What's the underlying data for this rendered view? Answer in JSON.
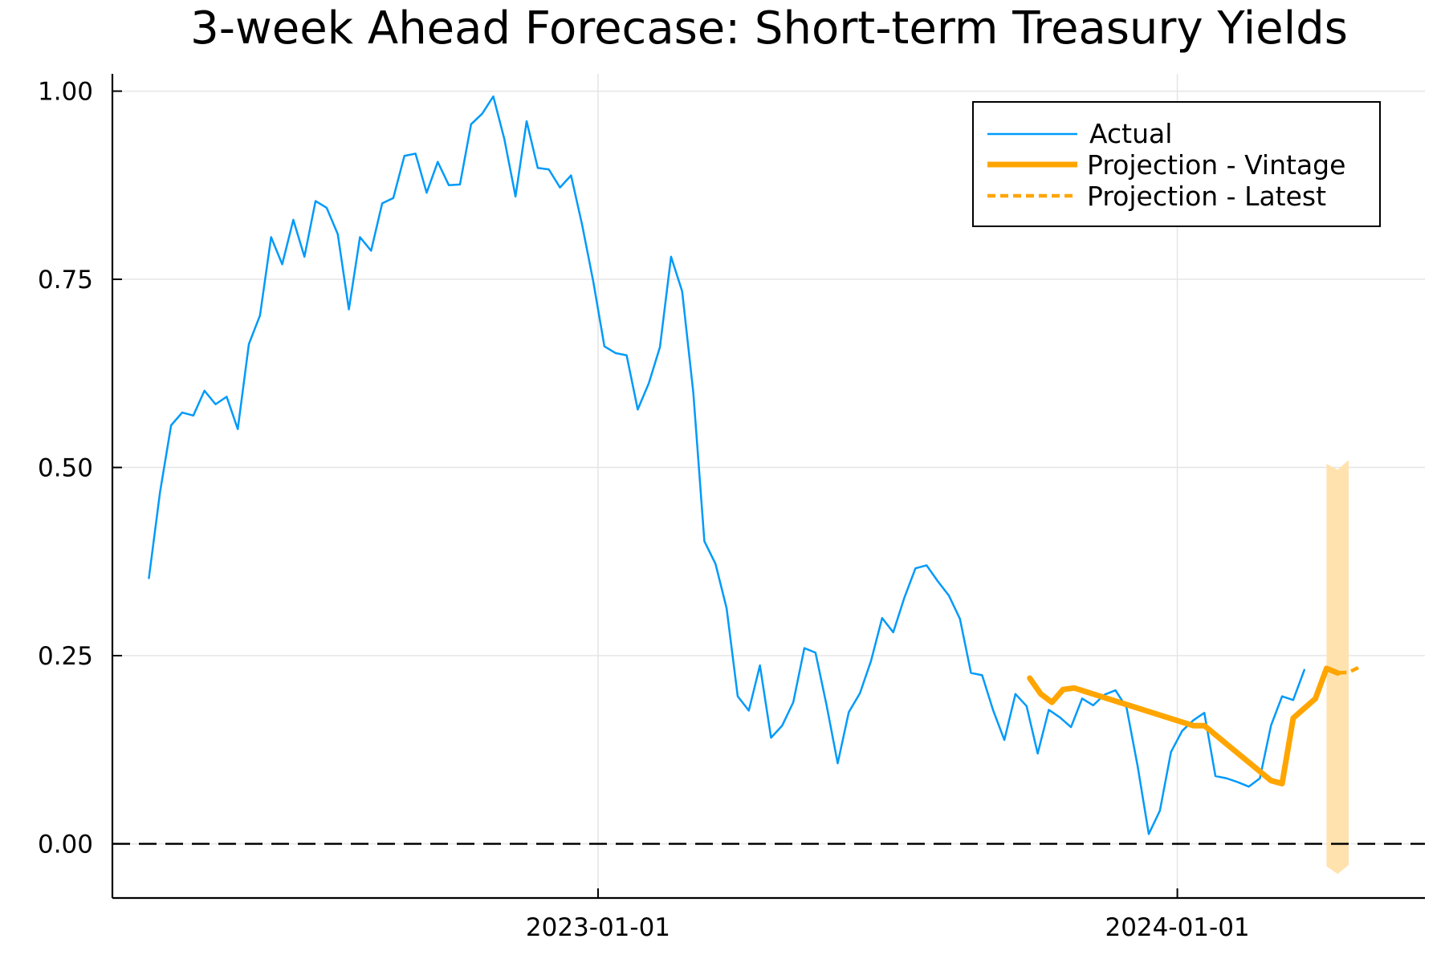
{
  "chart_data": {
    "type": "line",
    "title": "3-week Ahead Forecase: Short-term Treasury Yields",
    "xlabel": "",
    "ylabel": "",
    "x_axis": {
      "kind": "date",
      "range": [
        "2022-03-01",
        "2024-06-05"
      ],
      "ticks": [
        "2023-01-01",
        "2024-01-01"
      ],
      "tick_labels": [
        "2023-01-01",
        "2024-01-01"
      ]
    },
    "y_axis": {
      "range": [
        -0.072,
        1.023
      ],
      "ticks": [
        0,
        0.25,
        0.5,
        0.75,
        1.0
      ],
      "tick_labels": [
        "0.00",
        "0.25",
        "0.50",
        "0.75",
        "1.00"
      ]
    },
    "grid": true,
    "legend_position": "top-right",
    "reference_line": {
      "y": 0,
      "style": "dashed",
      "color": "#000000"
    },
    "colors": {
      "actual": "#009AFA",
      "projection": "#FFA500",
      "band": "#FFE2AE"
    },
    "series": [
      {
        "name": "Actual",
        "style": "solid",
        "points": [
          [
            "2022-03-24",
            0.353
          ],
          [
            "2022-03-31",
            0.467
          ],
          [
            "2022-04-07",
            0.556
          ],
          [
            "2022-04-14",
            0.573
          ],
          [
            "2022-04-21",
            0.569
          ],
          [
            "2022-04-28",
            0.602
          ],
          [
            "2022-05-05",
            0.584
          ],
          [
            "2022-05-12",
            0.594
          ],
          [
            "2022-05-19",
            0.551
          ],
          [
            "2022-05-26",
            0.664
          ],
          [
            "2022-06-02",
            0.702
          ],
          [
            "2022-06-09",
            0.806
          ],
          [
            "2022-06-16",
            0.77
          ],
          [
            "2022-06-23",
            0.829
          ],
          [
            "2022-06-30",
            0.78
          ],
          [
            "2022-07-07",
            0.854
          ],
          [
            "2022-07-14",
            0.845
          ],
          [
            "2022-07-21",
            0.81
          ],
          [
            "2022-07-28",
            0.71
          ],
          [
            "2022-08-04",
            0.806
          ],
          [
            "2022-08-11",
            0.788
          ],
          [
            "2022-08-18",
            0.851
          ],
          [
            "2022-08-25",
            0.858
          ],
          [
            "2022-09-01",
            0.914
          ],
          [
            "2022-09-08",
            0.917
          ],
          [
            "2022-09-15",
            0.865
          ],
          [
            "2022-09-22",
            0.906
          ],
          [
            "2022-09-29",
            0.875
          ],
          [
            "2022-10-06",
            0.876
          ],
          [
            "2022-10-13",
            0.956
          ],
          [
            "2022-10-20",
            0.97
          ],
          [
            "2022-10-27",
            0.993
          ],
          [
            "2022-11-03",
            0.936
          ],
          [
            "2022-11-10",
            0.86
          ],
          [
            "2022-11-17",
            0.96
          ],
          [
            "2022-11-24",
            0.898
          ],
          [
            "2022-12-01",
            0.896
          ],
          [
            "2022-12-08",
            0.872
          ],
          [
            "2022-12-15",
            0.888
          ],
          [
            "2022-12-22",
            0.822
          ],
          [
            "2022-12-29",
            0.747
          ],
          [
            "2023-01-05",
            0.661
          ],
          [
            "2023-01-12",
            0.652
          ],
          [
            "2023-01-19",
            0.649
          ],
          [
            "2023-01-26",
            0.577
          ],
          [
            "2023-02-02",
            0.612
          ],
          [
            "2023-02-09",
            0.66
          ],
          [
            "2023-02-16",
            0.78
          ],
          [
            "2023-02-23",
            0.734
          ],
          [
            "2023-03-02",
            0.6
          ],
          [
            "2023-03-09",
            0.402
          ],
          [
            "2023-03-16",
            0.372
          ],
          [
            "2023-03-23",
            0.313
          ],
          [
            "2023-03-30",
            0.196
          ],
          [
            "2023-04-06",
            0.177
          ],
          [
            "2023-04-13",
            0.237
          ],
          [
            "2023-04-20",
            0.141
          ],
          [
            "2023-04-27",
            0.157
          ],
          [
            "2023-05-04",
            0.188
          ],
          [
            "2023-05-11",
            0.26
          ],
          [
            "2023-05-18",
            0.254
          ],
          [
            "2023-05-25",
            0.184
          ],
          [
            "2023-06-01",
            0.107
          ],
          [
            "2023-06-08",
            0.175
          ],
          [
            "2023-06-15",
            0.2
          ],
          [
            "2023-06-22",
            0.243
          ],
          [
            "2023-06-29",
            0.3
          ],
          [
            "2023-07-06",
            0.281
          ],
          [
            "2023-07-13",
            0.327
          ],
          [
            "2023-07-20",
            0.366
          ],
          [
            "2023-07-27",
            0.37
          ],
          [
            "2023-08-03",
            0.349
          ],
          [
            "2023-08-10",
            0.33
          ],
          [
            "2023-08-17",
            0.299
          ],
          [
            "2023-08-24",
            0.227
          ],
          [
            "2023-08-31",
            0.224
          ],
          [
            "2023-09-07",
            0.177
          ],
          [
            "2023-09-14",
            0.138
          ],
          [
            "2023-09-21",
            0.199
          ],
          [
            "2023-09-28",
            0.183
          ],
          [
            "2023-10-05",
            0.12
          ],
          [
            "2023-10-12",
            0.178
          ],
          [
            "2023-10-19",
            0.168
          ],
          [
            "2023-10-26",
            0.155
          ],
          [
            "2023-11-02",
            0.193
          ],
          [
            "2023-11-09",
            0.184
          ],
          [
            "2023-11-16",
            0.198
          ],
          [
            "2023-11-23",
            0.204
          ],
          [
            "2023-11-30",
            0.181
          ],
          [
            "2023-12-07",
            0.103
          ],
          [
            "2023-12-14",
            0.013
          ],
          [
            "2023-12-21",
            0.044
          ],
          [
            "2023-12-28",
            0.122
          ],
          [
            "2024-01-04",
            0.15
          ],
          [
            "2024-01-11",
            0.164
          ],
          [
            "2024-01-18",
            0.174
          ],
          [
            "2024-01-25",
            0.09
          ],
          [
            "2024-02-01",
            0.087
          ],
          [
            "2024-02-08",
            0.082
          ],
          [
            "2024-02-15",
            0.076
          ],
          [
            "2024-02-22",
            0.087
          ],
          [
            "2024-02-29",
            0.157
          ],
          [
            "2024-03-07",
            0.196
          ],
          [
            "2024-03-14",
            0.191
          ],
          [
            "2024-03-21",
            0.231
          ]
        ]
      },
      {
        "name": "Projection - Vintage",
        "style": "thick",
        "points": [
          [
            "2023-09-30",
            0.22
          ],
          [
            "2023-10-07",
            0.199
          ],
          [
            "2023-10-14",
            0.188
          ],
          [
            "2023-10-21",
            0.205
          ],
          [
            "2023-10-28",
            0.207
          ],
          [
            "2024-01-11",
            0.157
          ],
          [
            "2024-01-18",
            0.157
          ],
          [
            "2024-02-29",
            0.084
          ],
          [
            "2024-03-07",
            0.08
          ],
          [
            "2024-03-14",
            0.167
          ],
          [
            "2024-03-28",
            0.193
          ],
          [
            "2024-04-04",
            0.233
          ],
          [
            "2024-04-11",
            0.227
          ]
        ]
      },
      {
        "name": "Projection - Latest",
        "style": "dashed",
        "points": [
          [
            "2024-04-04",
            0.233
          ],
          [
            "2024-04-11",
            0.227
          ],
          [
            "2024-04-18",
            0.228
          ],
          [
            "2024-04-25",
            0.235
          ]
        ]
      }
    ],
    "bands": [
      {
        "points": [
          [
            "2024-04-04",
            0.505,
            -0.03
          ],
          [
            "2024-04-11",
            0.497,
            -0.04
          ],
          [
            "2024-04-18",
            0.51,
            -0.028
          ]
        ]
      }
    ]
  }
}
